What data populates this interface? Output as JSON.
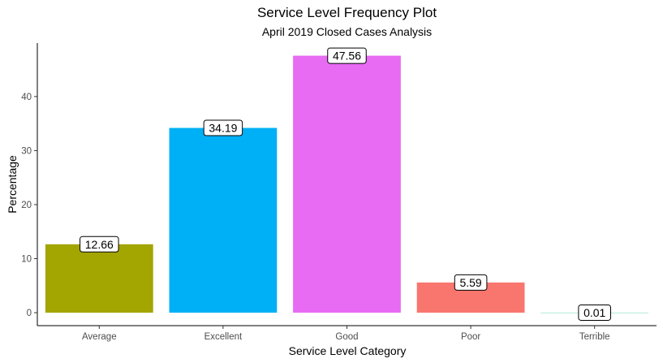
{
  "chart_data": {
    "type": "bar",
    "title": "Service Level Frequency Plot",
    "subtitle": "April 2019 Closed Cases Analysis",
    "xlabel": "Service Level Category",
    "ylabel": "Percentage",
    "categories": [
      "Average",
      "Excellent",
      "Good",
      "Poor",
      "Terrible"
    ],
    "values": [
      12.66,
      34.19,
      47.56,
      5.59,
      0.01
    ],
    "data_labels": [
      "12.66",
      "34.19",
      "47.56",
      "5.59",
      "0.01"
    ],
    "colors": [
      "#A3A500",
      "#00B0F6",
      "#E76BF3",
      "#F8766D",
      "#00BF7D"
    ],
    "yticks": [
      0,
      10,
      20,
      30,
      40
    ],
    "ytick_labels": [
      "0",
      "10",
      "20",
      "30",
      "40"
    ],
    "ylim": [
      -2.4,
      49.9
    ],
    "grid": false,
    "legend": "none"
  }
}
